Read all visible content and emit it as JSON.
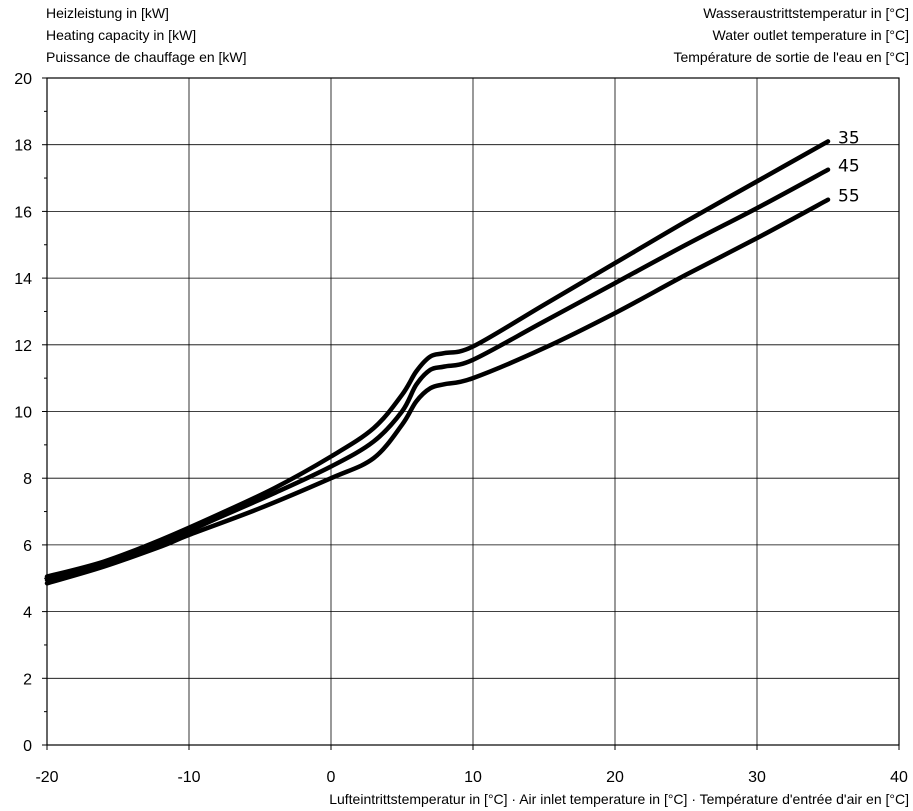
{
  "chart_data": {
    "type": "line",
    "title": "",
    "ylabel_lines": [
      "Heizleistung in [kW]",
      "Heating capacity in [kW]",
      "Puissance de chauffage en [kW]"
    ],
    "legend_title_lines": [
      "Wasseraustrittstemperatur in [°C]",
      "Water outlet temperature in [°C]",
      "Température de sortie de l'eau en [°C]"
    ],
    "xlabel": "Lufteintrittstemperatur in [°C] · Air inlet temperature in [°C] · Température d'entrée d'air en [°C]",
    "xlim": [
      -20,
      40
    ],
    "ylim": [
      0,
      20
    ],
    "x_ticks": [
      "-20",
      "-10",
      "0",
      "10",
      "20",
      "30",
      "40"
    ],
    "y_ticks": [
      "0",
      "2",
      "4",
      "6",
      "8",
      "10",
      "12",
      "14",
      "16",
      "18",
      "20"
    ],
    "grid": true,
    "series": [
      {
        "name": "35",
        "points": [
          [
            -20,
            5.05
          ],
          [
            -16,
            5.5
          ],
          [
            -12,
            6.15
          ],
          [
            -8,
            6.9
          ],
          [
            -4,
            7.7
          ],
          [
            0,
            8.65
          ],
          [
            3,
            9.5
          ],
          [
            5,
            10.5
          ],
          [
            6,
            11.2
          ],
          [
            7,
            11.65
          ],
          [
            8,
            11.75
          ],
          [
            10,
            11.95
          ],
          [
            15,
            13.2
          ],
          [
            20,
            14.45
          ],
          [
            25,
            15.7
          ],
          [
            30,
            16.9
          ],
          [
            35,
            18.1
          ]
        ]
      },
      {
        "name": "45",
        "points": [
          [
            -20,
            4.95
          ],
          [
            -16,
            5.4
          ],
          [
            -12,
            6.05
          ],
          [
            -8,
            6.8
          ],
          [
            -4,
            7.55
          ],
          [
            0,
            8.35
          ],
          [
            3,
            9.1
          ],
          [
            5,
            10.0
          ],
          [
            6,
            10.8
          ],
          [
            7,
            11.25
          ],
          [
            8,
            11.35
          ],
          [
            10,
            11.55
          ],
          [
            15,
            12.7
          ],
          [
            20,
            13.85
          ],
          [
            25,
            15.0
          ],
          [
            30,
            16.1
          ],
          [
            35,
            17.25
          ]
        ]
      },
      {
        "name": "55",
        "points": [
          [
            -20,
            4.85
          ],
          [
            -16,
            5.35
          ],
          [
            -12,
            5.95
          ],
          [
            -10,
            6.3
          ],
          [
            -5,
            7.1
          ],
          [
            0,
            8.0
          ],
          [
            3,
            8.6
          ],
          [
            5,
            9.6
          ],
          [
            6,
            10.3
          ],
          [
            7,
            10.7
          ],
          [
            8,
            10.82
          ],
          [
            10,
            11.0
          ],
          [
            15,
            11.9
          ],
          [
            20,
            12.95
          ],
          [
            25,
            14.1
          ],
          [
            30,
            15.2
          ],
          [
            35,
            16.35
          ]
        ]
      }
    ]
  }
}
